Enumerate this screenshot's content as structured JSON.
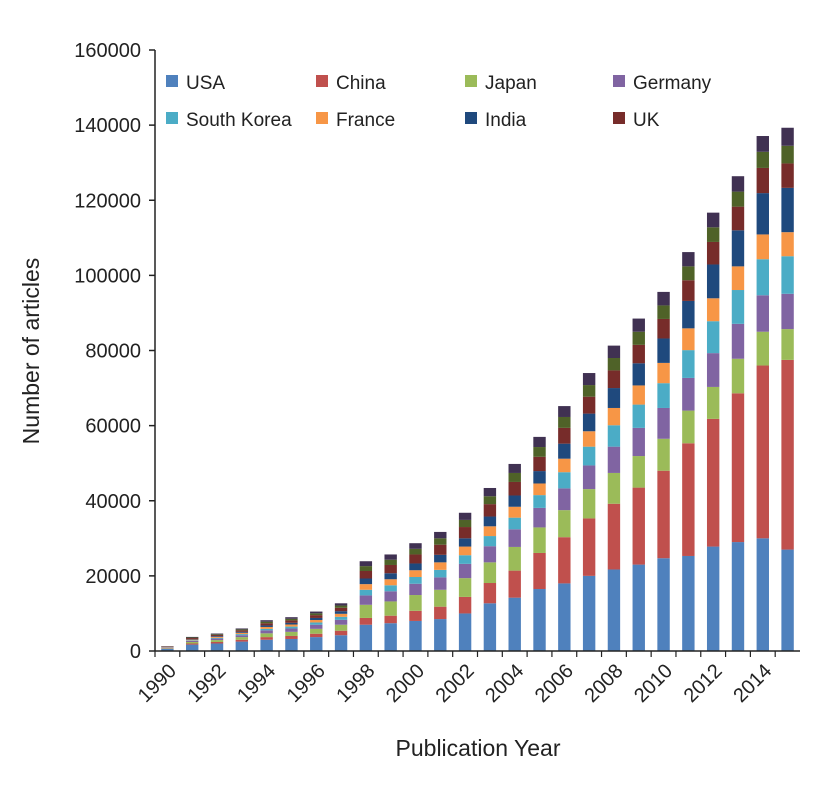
{
  "chart_data": {
    "type": "bar",
    "stacked": true,
    "title": "",
    "xlabel": "Publication Year",
    "ylabel": "Number of articles",
    "ylim": [
      0,
      160000
    ],
    "yticks": [
      0,
      20000,
      40000,
      60000,
      80000,
      100000,
      120000,
      140000,
      160000
    ],
    "xtick_labels": [
      "1990",
      "1992",
      "1994",
      "1996",
      "1998",
      "2000",
      "2002",
      "2004",
      "2006",
      "2008",
      "2010",
      "2012",
      "2014"
    ],
    "grid": false,
    "legend_position": "top-inside",
    "categories": [
      "1990",
      "1991",
      "1992",
      "1993",
      "1994",
      "1995",
      "1996",
      "1997",
      "1998",
      "1999",
      "2000",
      "2001",
      "2002",
      "2003",
      "2004",
      "2005",
      "2006",
      "2007",
      "2008",
      "2009",
      "2010",
      "2011",
      "2012",
      "2013",
      "2014",
      "2015"
    ],
    "series": [
      {
        "name": "USA",
        "color": "#4f81bd",
        "values": [
          600,
          1700,
          2000,
          2500,
          3000,
          3200,
          3700,
          4200,
          7000,
          7400,
          8000,
          8500,
          10000,
          12700,
          14200,
          16500,
          18000,
          20000,
          21700,
          23000,
          24700,
          25300,
          27800,
          29000,
          30000,
          27000
        ]
      },
      {
        "name": "China",
        "color": "#c0504d",
        "values": [
          100,
          300,
          400,
          500,
          700,
          800,
          900,
          1200,
          1800,
          2000,
          2700,
          3300,
          4400,
          5400,
          7200,
          9600,
          12300,
          15300,
          17500,
          20500,
          23300,
          30000,
          34000,
          39600,
          46000,
          50500
        ]
      },
      {
        "name": "Japan",
        "color": "#9bbb59",
        "values": [
          150,
          400,
          500,
          700,
          1000,
          1100,
          1300,
          1600,
          3500,
          3800,
          4200,
          4500,
          5000,
          5500,
          6300,
          6800,
          7200,
          7800,
          8200,
          8400,
          8500,
          8700,
          8500,
          9200,
          9000,
          8200
        ]
      },
      {
        "name": "Germany",
        "color": "#8064a2",
        "values": [
          100,
          300,
          400,
          500,
          800,
          900,
          1100,
          1300,
          2500,
          2700,
          3000,
          3300,
          3800,
          4300,
          4700,
          5200,
          5800,
          6300,
          7000,
          7500,
          8200,
          8700,
          9000,
          9300,
          9700,
          9400
        ]
      },
      {
        "name": "South Korea",
        "color": "#4bacc6",
        "values": [
          30,
          150,
          200,
          300,
          400,
          500,
          600,
          800,
          1500,
          1600,
          1800,
          2000,
          2300,
          2700,
          3100,
          3400,
          4300,
          5000,
          5700,
          6200,
          6600,
          7400,
          8500,
          9000,
          9600,
          10000
        ]
      },
      {
        "name": "France",
        "color": "#f79646",
        "values": [
          60,
          200,
          250,
          350,
          500,
          550,
          650,
          800,
          1500,
          1600,
          1800,
          2000,
          2300,
          2600,
          2900,
          3100,
          3600,
          4100,
          4600,
          5100,
          5400,
          5800,
          6100,
          6300,
          6600,
          6400
        ]
      },
      {
        "name": "India",
        "color": "#1f497d",
        "values": [
          30,
          150,
          200,
          250,
          400,
          450,
          550,
          700,
          1500,
          1600,
          1800,
          2000,
          2200,
          2600,
          3000,
          3300,
          4000,
          4700,
          5300,
          5900,
          6500,
          7300,
          9000,
          9600,
          11000,
          11800
        ]
      },
      {
        "name": "UK",
        "color": "#772c2a",
        "values": [
          100,
          250,
          300,
          400,
          600,
          650,
          750,
          900,
          2000,
          2200,
          2400,
          2700,
          3000,
          3300,
          3600,
          3800,
          4200,
          4500,
          4700,
          4900,
          5200,
          5500,
          6000,
          6300,
          6700,
          6500
        ]
      },
      {
        "color": "#4f6228",
        "values": [
          50,
          150,
          200,
          250,
          400,
          420,
          480,
          600,
          1300,
          1400,
          1500,
          1700,
          1900,
          2100,
          2400,
          2600,
          2900,
          3100,
          3300,
          3500,
          3600,
          3700,
          3900,
          4000,
          4300,
          4700
        ]
      },
      {
        "color": "#403152",
        "values": [
          60,
          150,
          200,
          250,
          400,
          430,
          470,
          600,
          1300,
          1400,
          1500,
          1700,
          1900,
          2200,
          2400,
          2700,
          2900,
          3200,
          3300,
          3500,
          3600,
          3800,
          3900,
          4100,
          4200,
          4800
        ]
      }
    ]
  }
}
